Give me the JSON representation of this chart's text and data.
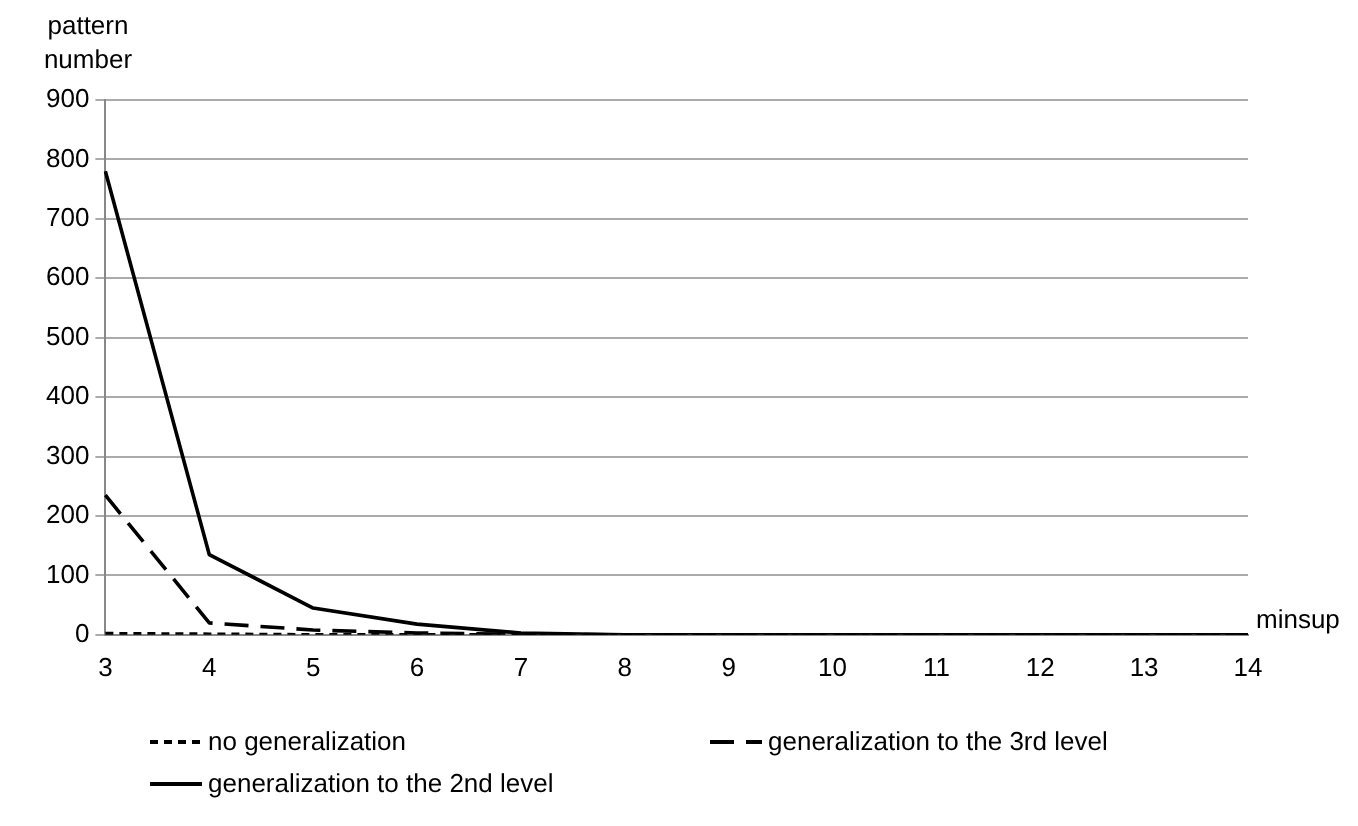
{
  "chart_data": {
    "type": "line",
    "xlabel": "minsup",
    "ylabel": "pattern number",
    "categories": [
      "3",
      "4",
      "5",
      "6",
      "7",
      "8",
      "9",
      "10",
      "11",
      "12",
      "13",
      "14"
    ],
    "ylim": [
      0,
      900
    ],
    "yticks": [
      0,
      100,
      200,
      300,
      400,
      500,
      600,
      700,
      800,
      900
    ],
    "grid": "y",
    "legend": "bottom",
    "marker": "none",
    "series": [
      {
        "name": "no generalization",
        "color": "#000000",
        "line_style": "dotted",
        "values": [
          2,
          1,
          0,
          0,
          0,
          0,
          0,
          0,
          0,
          0,
          0,
          0
        ]
      },
      {
        "name": "generalization to the 3rd level",
        "color": "#000000",
        "line_style": "dashed",
        "values": [
          235,
          20,
          8,
          3,
          1,
          0,
          0,
          0,
          0,
          0,
          0,
          0
        ]
      },
      {
        "name": "generalization to the 2nd level",
        "color": "#000000",
        "line_style": "solid",
        "values": [
          780,
          135,
          45,
          18,
          3,
          0,
          0,
          0,
          0,
          0,
          0,
          0
        ]
      }
    ]
  }
}
